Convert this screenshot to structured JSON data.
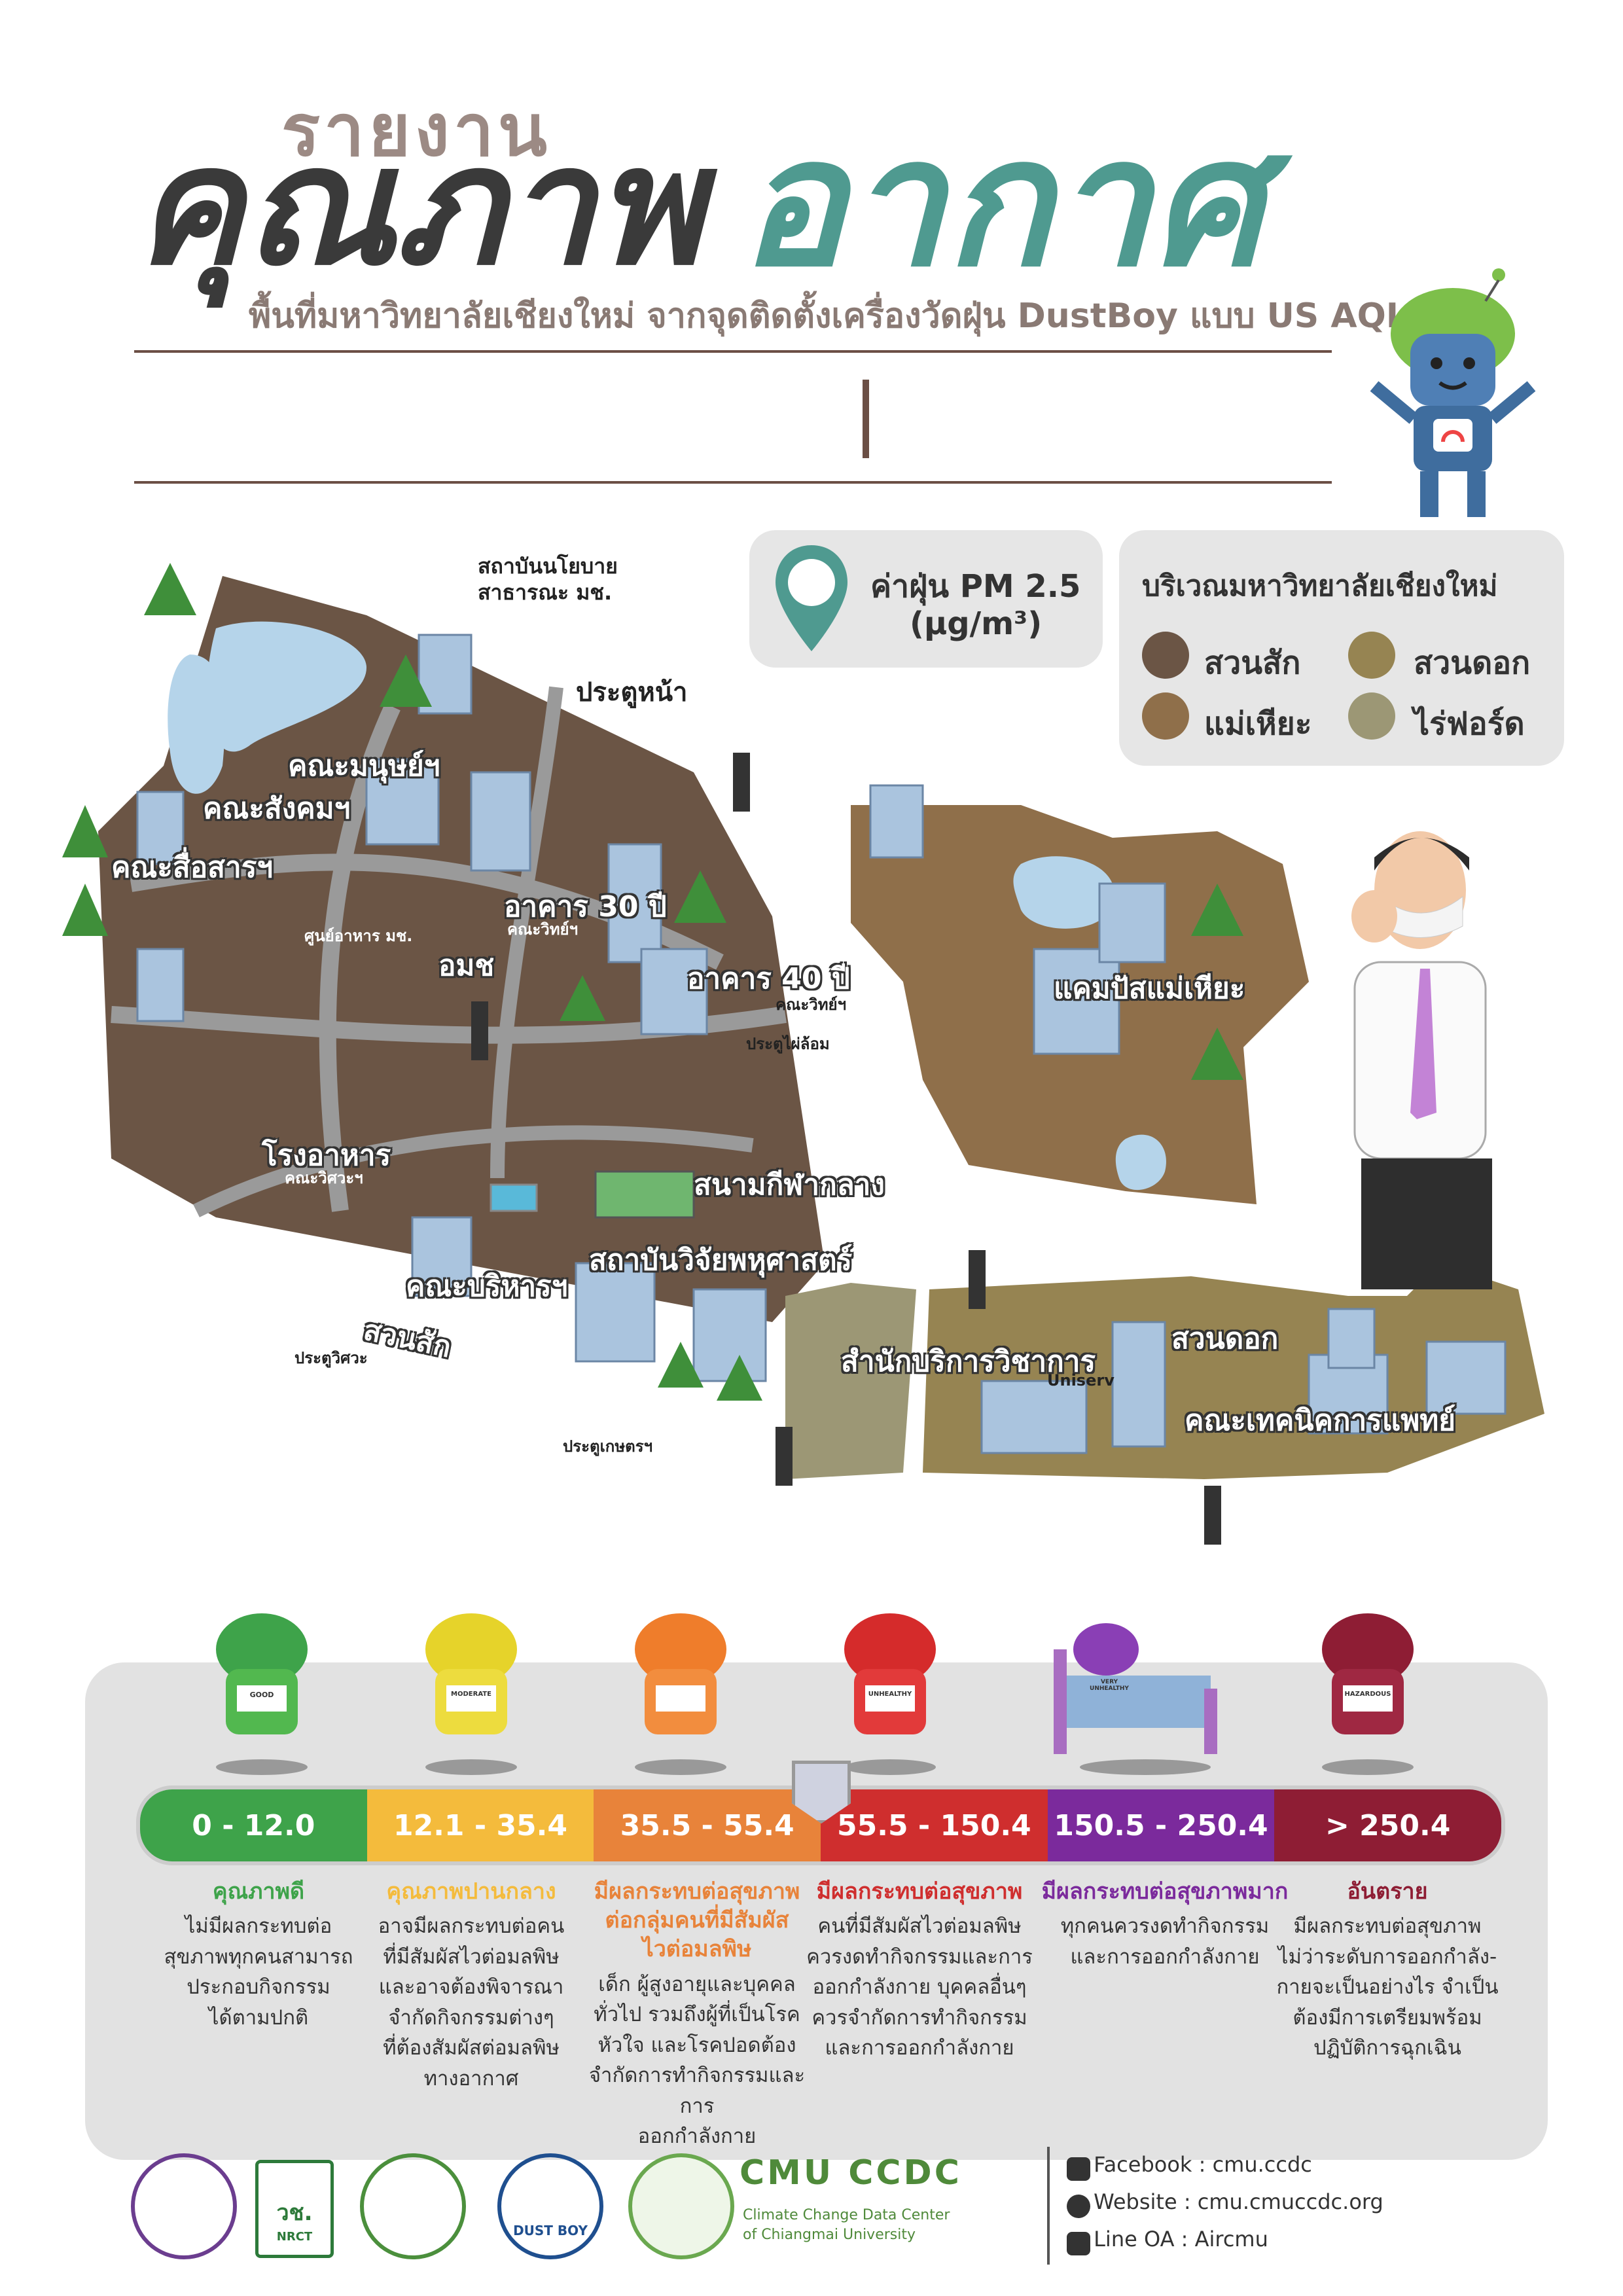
{
  "header": {
    "pre_title": "รายงาน",
    "title_part1": "คุณภาพ",
    "title_part2": "อากาศ",
    "subtitle": "พื้นที่มหาวิทยาลัยเชียงใหม่ จากจุดติดตั้งเครื่องวัดฝุ่น DustBoy แบบ US AQI"
  },
  "legend": {
    "pm_title": "ค่าฝุ่น PM 2.5",
    "pm_unit": "(µg/m³)",
    "area_title": "บริเวณมหาวิทยาลัยเชียงใหม่",
    "areas": [
      {
        "label": "สวนสัก",
        "color": "#6b5545"
      },
      {
        "label": "สวนดอก",
        "color": "#968452"
      },
      {
        "label": "แม่เหียะ",
        "color": "#8f6f4a"
      },
      {
        "label": "ไร่ฟอร์ด",
        "color": "#9c9775"
      }
    ]
  },
  "map": {
    "labels": {
      "policy": "สถาบันนโยบาย",
      "policy2": "สาธารณะ มช.",
      "front_gate": "ประตูหน้า",
      "humanities": "คณะมนุษย์ฯ",
      "social": "คณะสังคมฯ",
      "mass_comm": "คณะสื่อสารฯ",
      "food_center": "ศูนย์อาหาร มช.",
      "omch": "อมช",
      "bldg30": "อาคาร 30 ปี",
      "bldg30_sub": "คณะวิทย์ฯ",
      "bldg40": "อาคาร 40 ปี",
      "bldg40_sub": "คณะวิทย์ฯ",
      "gate_flame": "ประตูไผ่ล้อม",
      "canteen": "โรงอาหาร",
      "canteen_sub": "คณะวิศวะฯ",
      "stadium": "สนามกีฬากลาง",
      "multidisc": "สถาบันวิจัยพหุศาสตร์",
      "business": "คณะบริหารฯ",
      "suan_sak": "สวนสัก",
      "gate_eng": "ประตูวิศวะ",
      "gate_agri": "ประตูเกษตรฯ",
      "mae_hia": "แคมปัสแม่เหียะ",
      "uniserv": "สำนักบริการวิชาการ",
      "uniserv_sub": "Uniserv",
      "suan_dok": "สวนดอก",
      "ams": "คณะเทคนิคการแพทย์"
    }
  },
  "aqi": {
    "ranges": [
      {
        "label": "0 - 12.0",
        "color": "#3ea34a"
      },
      {
        "label": "12.1 - 35.4",
        "color": "#f4bb3c"
      },
      {
        "label": "35.5 - 55.4",
        "color": "#e8833a"
      },
      {
        "label": "55.5 - 150.4",
        "color": "#cf2e2e"
      },
      {
        "label": "150.5 - 250.4",
        "color": "#7b2a9c"
      },
      {
        "label": "> 250.4",
        "color": "#8e1d34"
      }
    ],
    "badges": [
      "GOOD",
      "MODERATE",
      "",
      "UNHEALTHY",
      "VERY UNHEALTHY",
      "HAZARDOUS"
    ],
    "categories": [
      {
        "title": "คุณภาพดี",
        "color": "#3ea34a",
        "desc": "ไม่มีผลกระทบต่อ\nสุขภาพทุกคนสามารถ\nประกอบกิจกรรม\nได้ตามปกติ"
      },
      {
        "title": "คุณภาพปานกลาง",
        "color": "#f4bb3c",
        "desc": "อาจมีผลกระทบต่อคน\nที่มีสัมผัสไวต่อมลพิษ\nและอาจต้องพิจารณา\nจำกัดกิจกรรมต่างๆ\nที่ต้องสัมผัสต่อมลพิษ\nทางอากาศ"
      },
      {
        "title": "มีผลกระทบต่อสุขภาพ\nต่อกลุ่มคนที่มีสัมผัส\nไวต่อมลพิษ",
        "color": "#e8833a",
        "desc": "เด็ก ผู้สูงอายุและบุคคล\nทั่วไป รวมถึงผู้ที่เป็นโรค\nหัวใจ และโรคปอดต้อง\nจำกัดการทำกิจกรรมและการ\nออกกำลังกาย"
      },
      {
        "title": "มีผลกระทบต่อสุขภาพ",
        "color": "#cf2e2e",
        "desc": "คนที่มีสัมผัสไวต่อมลพิษ\nควรงดทำกิจกรรมและการ\nออกกำลังกาย บุคคลอื่นๆ\nควรจำกัดการทำกิจกรรม\nและการออกกำลังกาย"
      },
      {
        "title": "มีผลกระทบต่อสุขภาพมาก",
        "color": "#7b2a9c",
        "desc": "ทุกคนควรงดทำกิจกรรม\nและการออกกำลังกาย"
      },
      {
        "title": "อันตราย",
        "color": "#8e1d34",
        "desc": "มีผลกระทบต่อสุขภาพ\nไม่ว่าระดับการออกกำลัง-\nกายจะเป็นอย่างไร จำเป็น\nต้องมีการเตรียมพร้อม\nปฏิบัติการฉุกเฉิน"
      }
    ]
  },
  "footer": {
    "nrct": "วช.",
    "nrct_en": "NRCT",
    "dustboy": "DUST BOY",
    "ccdc_name": "CMU CCDC",
    "ccdc_sub1": "Climate Change Data Center",
    "ccdc_sub2": "of Chiangmai University",
    "facebook": "Facebook : cmu.ccdc",
    "website": "Website : cmu.cmuccdc.org",
    "line": "Line OA : Aircmu"
  }
}
